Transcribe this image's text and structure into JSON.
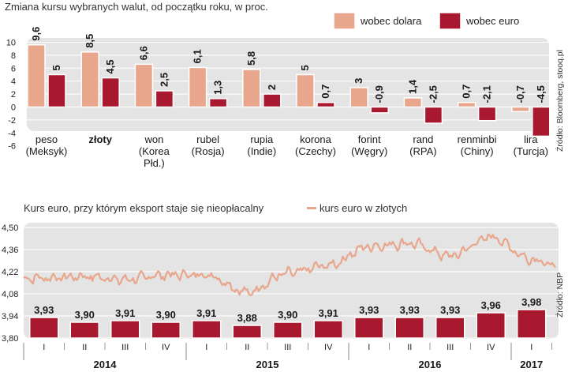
{
  "colors": {
    "dollar": "#e8a68c",
    "euro": "#a8182e",
    "panel": "#e4e4e4",
    "rate_line": "#e8a68c"
  },
  "chart_data": [
    {
      "type": "bar",
      "title": "Zmiana kursu wybranych walut, od początku roku, w proc.",
      "legend": [
        "wobec dolara",
        "wobec euro"
      ],
      "source": "Źródło: Bloomberg, stooq.pl",
      "ylim": [
        -6,
        10
      ],
      "yticks": [
        10,
        8,
        6,
        4,
        2,
        0,
        -2,
        -4,
        -6
      ],
      "categories": [
        {
          "name": "peso",
          "sub": "(Meksyk)",
          "sub2": "",
          "bold": false
        },
        {
          "name": "złoty",
          "sub": "",
          "sub2": "",
          "bold": true
        },
        {
          "name": "won",
          "sub": "(Korea",
          "sub2": "Płd.)",
          "bold": false
        },
        {
          "name": "rubel",
          "sub": "(Rosja)",
          "sub2": "",
          "bold": false
        },
        {
          "name": "rupia",
          "sub": "(Indie)",
          "sub2": "",
          "bold": false
        },
        {
          "name": "korona",
          "sub": "(Czechy)",
          "sub2": "",
          "bold": false
        },
        {
          "name": "forint",
          "sub": "(Węgry)",
          "sub2": "",
          "bold": false
        },
        {
          "name": "rand",
          "sub": "(RPA)",
          "sub2": "",
          "bold": false
        },
        {
          "name": "renminbi",
          "sub": "(Chiny)",
          "sub2": "",
          "bold": false
        },
        {
          "name": "lira",
          "sub": "(Turcja)",
          "sub2": "",
          "bold": false
        }
      ],
      "series": [
        {
          "name": "wobec dolara",
          "values": [
            9.6,
            8.5,
            6.6,
            6.1,
            5.8,
            5,
            3,
            1.4,
            0.7,
            -0.7
          ],
          "labels": [
            "9,6",
            "8,5",
            "6,6",
            "6,1",
            "5,8",
            "5",
            "3",
            "1,4",
            "0,7",
            "-0,7"
          ]
        },
        {
          "name": "wobec euro",
          "values": [
            5,
            4.5,
            2.5,
            1.3,
            2,
            0.7,
            -0.9,
            -2.5,
            -2.1,
            -4.5
          ],
          "labels": [
            "5",
            "4,5",
            "2,5",
            "1,3",
            "2",
            "0,7",
            "-0,9",
            "-2,5",
            "-2,1",
            "-4,5"
          ]
        }
      ]
    },
    {
      "type": "line+bar",
      "title": "Kurs euro, przy którym eksport staje się nieopłacalny",
      "legend": [
        "kurs euro w złotych"
      ],
      "source": "Źródło: NBP",
      "ylim": [
        3.8,
        4.5
      ],
      "yticks": [
        "4,50",
        "4,36",
        "4,22",
        "4,08",
        "3,94",
        "3,80"
      ],
      "ytick_values": [
        4.5,
        4.36,
        4.22,
        4.08,
        3.94,
        3.8
      ],
      "quarters": [
        "I",
        "II",
        "III",
        "IV",
        "I",
        "II",
        "III",
        "IV",
        "I",
        "II",
        "III",
        "IV",
        "I"
      ],
      "years": [
        {
          "label": "2014",
          "quarters": 4
        },
        {
          "label": "2015",
          "quarters": 4
        },
        {
          "label": "2016",
          "quarters": 4
        },
        {
          "label": "2017",
          "quarters": 1
        }
      ],
      "threshold_values": [
        3.93,
        3.9,
        3.91,
        3.9,
        3.91,
        3.88,
        3.9,
        3.91,
        3.93,
        3.93,
        3.93,
        3.96,
        3.98
      ],
      "threshold_labels": [
        "3,93",
        "3,90",
        "3,91",
        "3,90",
        "3,91",
        "3,88",
        "3,90",
        "3,91",
        "3,93",
        "3,93",
        "3,93",
        "3,96",
        "3,98"
      ],
      "rate_quarterly_approx": [
        4.18,
        4.19,
        4.17,
        4.2,
        4.2,
        4.09,
        4.21,
        4.26,
        4.38,
        4.4,
        4.32,
        4.44,
        4.3
      ],
      "rate_end_2017": 4.21
    }
  ]
}
